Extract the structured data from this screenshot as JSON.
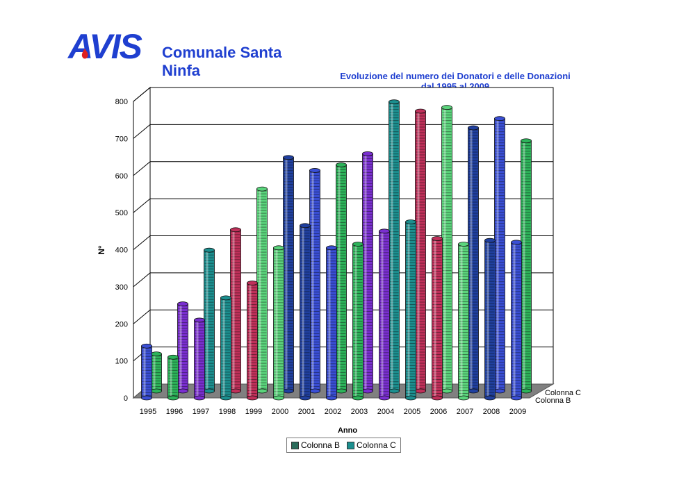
{
  "header": {
    "logo_text": "AVIS",
    "org_line1": "Comunale Santa",
    "org_line2": "Ninfa"
  },
  "chart_data": {
    "type": "bar",
    "title": "Evoluzione del numero dei  Donatori e delle Donazioni",
    "subtitle": "dal 1995 al 2009",
    "xlabel": "Anno",
    "ylabel": "N°",
    "ylim": [
      0,
      800
    ],
    "yticks": [
      0,
      100,
      200,
      300,
      400,
      500,
      600,
      700,
      800
    ],
    "grid": true,
    "legend_position": "bottom",
    "categories": [
      "1995",
      "1996",
      "1997",
      "1998",
      "1999",
      "2000",
      "2001",
      "2002",
      "2003",
      "2004",
      "2005",
      "2006",
      "2007",
      "2008",
      "2009"
    ],
    "series": [
      {
        "name": "Colonna B",
        "values": [
          140,
          110,
          210,
          270,
          310,
          405,
          465,
          405,
          415,
          450,
          475,
          430,
          415,
          425,
          420
        ]
      },
      {
        "name": "Colonna C",
        "values": [
          100,
          235,
          380,
          435,
          545,
          630,
          595,
          610,
          640,
          780,
          755,
          765,
          710,
          735,
          675
        ]
      }
    ],
    "depth_axis_labels": [
      "Colonna C",
      "Colonna B"
    ],
    "colors": {
      "bar_palette": [
        "#3a4fd6",
        "#2db35a",
        "#7a2fd0",
        "#1c8f8f",
        "#c0305a",
        "#5bd47c",
        "#2040a0"
      ],
      "floor": "#808080",
      "gridline": "#000000"
    }
  }
}
